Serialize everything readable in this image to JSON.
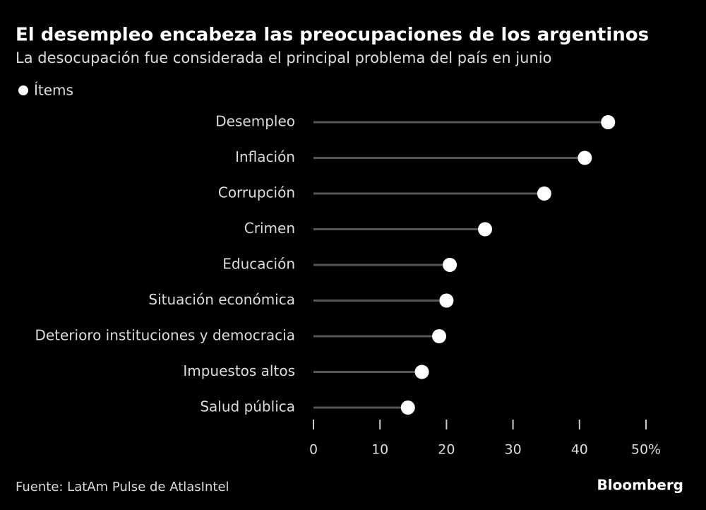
{
  "chart_data": {
    "type": "lollipop",
    "title": "El desempleo encabeza las preocupaciones de los argentinos",
    "subtitle": "La desocupación fue considerada el principal problema del país en junio",
    "categories": [
      "Desempleo",
      "Inflación",
      "Corrupción",
      "Crimen",
      "Educación",
      "Situación económica",
      "Deterioro instituciones y democracia",
      "Impuestos altos",
      "Salud pública"
    ],
    "series": [
      {
        "name": "Ítems",
        "color": "#ffffff",
        "values": [
          44.3,
          40.8,
          34.7,
          25.8,
          20.5,
          20.0,
          18.9,
          16.3,
          14.2
        ]
      }
    ],
    "xlim": [
      0,
      50
    ],
    "xticks": [
      0,
      10,
      20,
      30,
      40,
      {
        "value": 50,
        "label": "50%"
      }
    ],
    "source": "Fuente: LatAm Pulse de AtlasIntel",
    "brand": "Bloomberg"
  }
}
